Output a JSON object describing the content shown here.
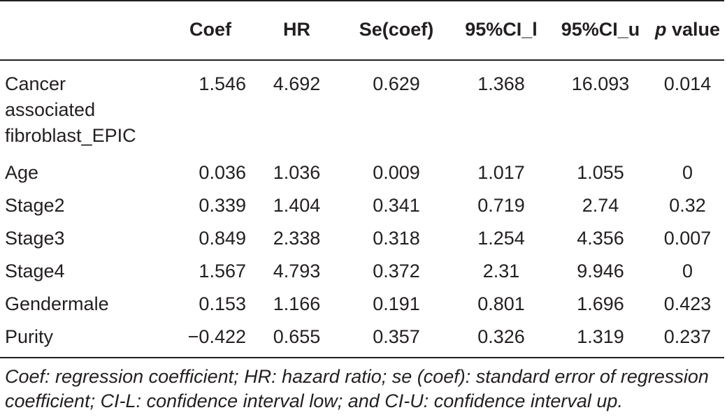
{
  "table": {
    "headers": [
      "",
      "Coef",
      "HR",
      "Se(coef)",
      "95%CI_l",
      "95%CI_u",
      "p value"
    ],
    "p_header_italic_part": "p",
    "p_header_rest": " value",
    "rows": [
      {
        "name": [
          "Cancer",
          "associated",
          "fibroblast_EPIC"
        ],
        "coef": "1.546",
        "hr": "4.692",
        "se": "0.629",
        "ci_l": "1.368",
        "ci_u": "16.093",
        "p": "0.014"
      },
      {
        "name": [
          "Age"
        ],
        "coef": "0.036",
        "hr": "1.036",
        "se": "0.009",
        "ci_l": "1.017",
        "ci_u": "1.055",
        "p": "0"
      },
      {
        "name": [
          "Stage2"
        ],
        "coef": "0.339",
        "hr": "1.404",
        "se": "0.341",
        "ci_l": "0.719",
        "ci_u": "2.74",
        "p": "0.32"
      },
      {
        "name": [
          "Stage3"
        ],
        "coef": "0.849",
        "hr": "2.338",
        "se": "0.318",
        "ci_l": "1.254",
        "ci_u": "4.356",
        "p": "0.007"
      },
      {
        "name": [
          "Stage4"
        ],
        "coef": "1.567",
        "hr": "4.793",
        "se": "0.372",
        "ci_l": "2.31",
        "ci_u": "9.946",
        "p": "0"
      },
      {
        "name": [
          "Gendermale"
        ],
        "coef": "0.153",
        "hr": "1.166",
        "se": "0.191",
        "ci_l": "0.801",
        "ci_u": "1.696",
        "p": "0.423"
      },
      {
        "name": [
          "Purity"
        ],
        "coef": "−0.422",
        "hr": "0.655",
        "se": "0.357",
        "ci_l": "0.326",
        "ci_u": "1.319",
        "p": "0.237"
      }
    ]
  },
  "footnote": "Coef: regression coefficient; HR: hazard ratio; se (coef): standard error of regression coefficient; CI-L: confidence interval low; and CI-U: confidence interval up."
}
